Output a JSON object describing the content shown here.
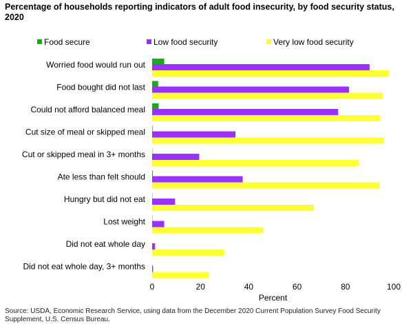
{
  "chart_data": {
    "type": "bar",
    "orientation": "horizontal",
    "title": "Percentage of households reporting indicators of adult food insecurity, by food security status, 2020",
    "categories": [
      "Worried food would run out",
      "Food bought did not last",
      "Could not afford balanced meal",
      "Cut size of meal or skipped meal",
      "Cut or skipped meal in 3+ months",
      "Ate less than felt should",
      "Hungry but did not eat",
      "Lost weight",
      "Did not eat whole day",
      "Did not eat whole day, 3+ months"
    ],
    "series": [
      {
        "name": "Food secure",
        "color": "#1aaa1a",
        "values": [
          5,
          2.5,
          2.7,
          0.2,
          0.1,
          0.3,
          0.1,
          0.1,
          0,
          0
        ]
      },
      {
        "name": "Low food security",
        "color": "#9b30ff",
        "values": [
          90,
          81.5,
          77,
          34.5,
          19.5,
          37.5,
          9.5,
          5,
          1.2,
          0.4
        ]
      },
      {
        "name": "Very low food security",
        "color": "#ffff33",
        "values": [
          98,
          95.5,
          94.5,
          96,
          85.5,
          94,
          67,
          46,
          30,
          23.5
        ]
      }
    ],
    "xlabel": "Percent",
    "ylabel": "",
    "xlim": [
      0,
      100
    ],
    "xticks": [
      0,
      20,
      40,
      60,
      80,
      100
    ],
    "grid": false,
    "legend_position": "top"
  },
  "source": "Source: USDA, Economic Research Service, using data from the December 2020 Current Population Survey Food Security Supplement, U.S. Census Bureau."
}
